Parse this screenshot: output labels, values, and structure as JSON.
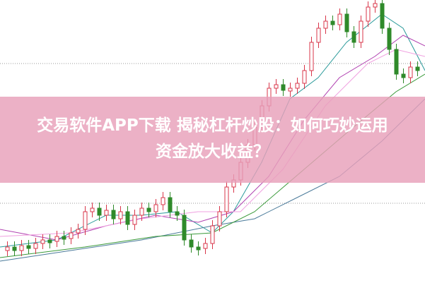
{
  "article": {
    "title_line1": "交易软件APP下载 揭秘杠杆炒股：如何巧妙运用",
    "title_line2": "资金放大收益？"
  },
  "colors": {
    "up": "#d8364a",
    "down": "#2f8a2a",
    "banner": "#e8a0ba",
    "ma_short": "#2a9a9a",
    "ma_mid": "#b040b0",
    "ma_long": "#f0a0e0",
    "ma_longest": "#4a7a9a"
  }
}
